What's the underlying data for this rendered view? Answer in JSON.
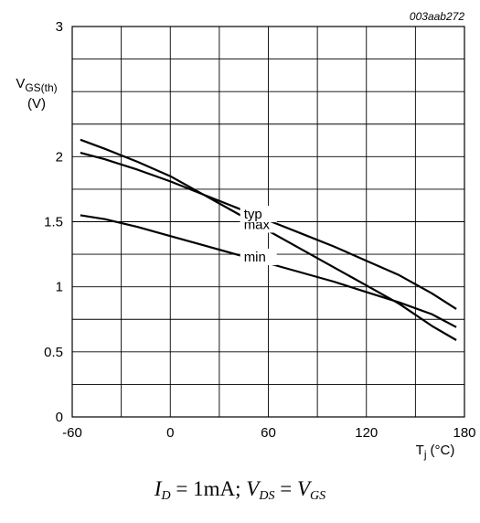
{
  "figure_id": "003aab272",
  "condition": {
    "id_var": "I",
    "id_sub": "D",
    "id_value": "1mA",
    "vds_var": "V",
    "vds_sub": "DS",
    "vgs_var": "V",
    "vgs_sub": "GS"
  },
  "chart_data": {
    "type": "line",
    "ylabel_main": "V",
    "ylabel_sub": "GS(th)",
    "ylabel_unit": "(V)",
    "xlabel_main": "T",
    "xlabel_sub": "j",
    "xlabel_unit": "(°C)",
    "xlim": [
      -60,
      180
    ],
    "ylim": [
      0,
      3
    ],
    "xticks": [
      -60,
      0,
      60,
      120,
      180
    ],
    "xtick_labels": [
      "-60",
      "0",
      "60",
      "120",
      "180"
    ],
    "yticks": [
      0,
      0.5,
      1,
      1.5,
      2,
      2.5,
      3
    ],
    "ytick_labels": [
      "0",
      "0.5",
      "1",
      "1.5",
      "2",
      "",
      "3"
    ],
    "grid": true,
    "series": [
      {
        "name": "max",
        "x": [
          -55,
          -40,
          -20,
          0,
          20,
          40,
          60,
          80,
          100,
          120,
          140,
          160,
          175
        ],
        "y": [
          2.13,
          2.06,
          1.96,
          1.85,
          1.71,
          1.57,
          1.43,
          1.29,
          1.15,
          1.01,
          0.87,
          0.7,
          0.59
        ]
      },
      {
        "name": "typ",
        "x": [
          -55,
          -40,
          -20,
          0,
          20,
          40,
          60,
          80,
          100,
          120,
          140,
          160,
          175
        ],
        "y": [
          2.03,
          1.98,
          1.9,
          1.81,
          1.71,
          1.61,
          1.51,
          1.41,
          1.31,
          1.2,
          1.09,
          0.95,
          0.83
        ]
      },
      {
        "name": "min",
        "x": [
          -55,
          -40,
          -20,
          0,
          20,
          40,
          60,
          80,
          100,
          120,
          140,
          160,
          175
        ],
        "y": [
          1.55,
          1.52,
          1.46,
          1.39,
          1.32,
          1.25,
          1.18,
          1.11,
          1.04,
          0.96,
          0.88,
          0.79,
          0.69
        ]
      }
    ]
  }
}
